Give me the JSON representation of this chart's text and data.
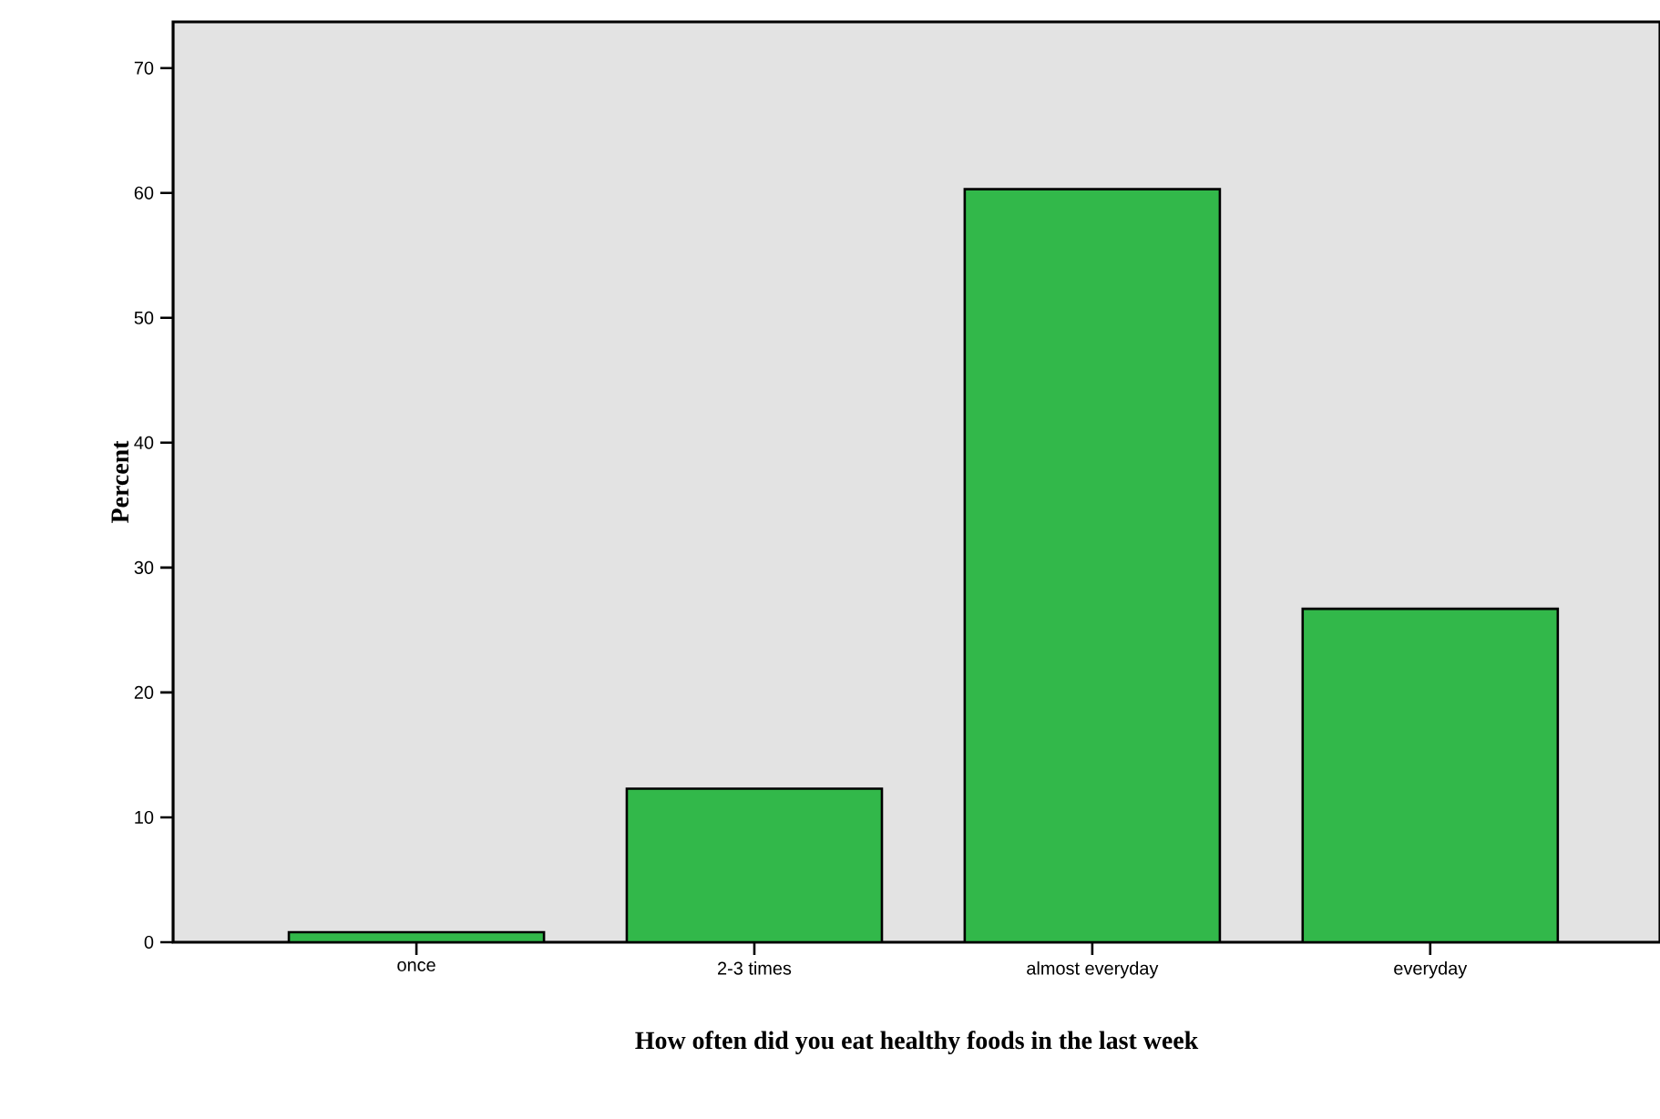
{
  "chart_data": {
    "type": "bar",
    "xlabel": "How often did you eat healthy foods in the last week",
    "ylabel": "Percent",
    "categories": [
      "once",
      "2-3 times",
      "almost everyday",
      "everyday"
    ],
    "values": [
      0.8,
      12.3,
      60.3,
      26.7
    ],
    "color": "#32b84a",
    "ylim": [
      0,
      73.7
    ],
    "yticks": [
      0,
      10,
      20,
      30,
      40,
      50,
      60,
      70
    ],
    "grid": false
  }
}
